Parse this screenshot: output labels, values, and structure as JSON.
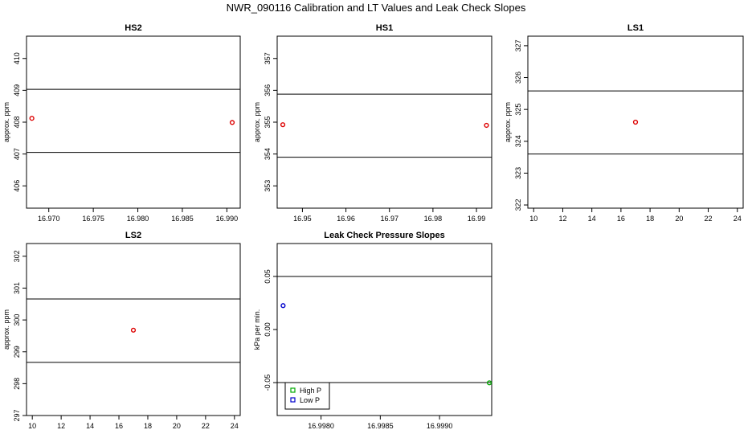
{
  "figure": {
    "title": "NWR_090116  Calibration and LT Values and Leak Check Slopes"
  },
  "chart_data": [
    {
      "type": "scatter",
      "title": "HS2",
      "xlabel": "",
      "ylabel": "approx. ppm",
      "xlim": [
        16.9675,
        16.9915
      ],
      "ylim": [
        405.3,
        410.7
      ],
      "xticks": [
        16.97,
        16.975,
        16.98,
        16.985,
        16.99
      ],
      "xtick_labels": [
        "16.970",
        "16.975",
        "16.980",
        "16.985",
        "16.990"
      ],
      "yticks": [
        406,
        407,
        408,
        409,
        410
      ],
      "ytick_labels": [
        "406",
        "407",
        "408",
        "409",
        "410"
      ],
      "hlines": [
        409.03,
        407.05
      ],
      "series": [
        {
          "marker": "circle",
          "color": "#dd0000",
          "points": [
            {
              "x": 16.9681,
              "y": 408.12
            },
            {
              "x": 16.9906,
              "y": 407.99
            }
          ]
        }
      ]
    },
    {
      "type": "scatter",
      "title": "HS1",
      "xlabel": "",
      "ylabel": "approx. ppm",
      "xlim": [
        16.9442,
        16.9935
      ],
      "ylim": [
        352.3,
        357.7
      ],
      "xticks": [
        16.95,
        16.96,
        16.97,
        16.98,
        16.99
      ],
      "xtick_labels": [
        "16.95",
        "16.96",
        "16.97",
        "16.98",
        "16.99"
      ],
      "yticks": [
        353,
        354,
        355,
        356,
        357
      ],
      "ytick_labels": [
        "353",
        "354",
        "355",
        "356",
        "357"
      ],
      "hlines": [
        355.88,
        353.9
      ],
      "series": [
        {
          "marker": "circle",
          "color": "#dd0000",
          "points": [
            {
              "x": 16.9455,
              "y": 354.92
            },
            {
              "x": 16.9923,
              "y": 354.9
            }
          ]
        }
      ]
    },
    {
      "type": "scatter",
      "title": "LS1",
      "xlabel": "",
      "ylabel": "approx. ppm",
      "xlim": [
        9.6,
        24.4
      ],
      "ylim": [
        321.9,
        327.3
      ],
      "xticks": [
        10,
        12,
        14,
        16,
        18,
        20,
        22,
        24
      ],
      "xtick_labels": [
        "10",
        "12",
        "14",
        "16",
        "18",
        "20",
        "22",
        "24"
      ],
      "yticks": [
        322,
        323,
        324,
        325,
        326,
        327
      ],
      "ytick_labels": [
        "322",
        "323",
        "324",
        "325",
        "326",
        "327"
      ],
      "hlines": [
        325.58,
        323.6
      ],
      "series": [
        {
          "marker": "circle",
          "color": "#dd0000",
          "points": [
            {
              "x": 17,
              "y": 324.6
            }
          ]
        }
      ]
    },
    {
      "type": "scatter",
      "title": "LS2",
      "xlabel": "",
      "ylabel": "approx. ppm",
      "xlim": [
        9.6,
        24.4
      ],
      "ylim": [
        297,
        302.4
      ],
      "xticks": [
        10,
        12,
        14,
        16,
        18,
        20,
        22,
        24
      ],
      "xtick_labels": [
        "10",
        "12",
        "14",
        "16",
        "18",
        "20",
        "22",
        "24"
      ],
      "yticks": [
        297,
        298,
        299,
        300,
        301,
        302
      ],
      "ytick_labels": [
        "297",
        "298",
        "299",
        "300",
        "301",
        "302"
      ],
      "hlines": [
        300.66,
        298.67
      ],
      "series": [
        {
          "marker": "circle",
          "color": "#dd0000",
          "points": [
            {
              "x": 17,
              "y": 299.68
            }
          ]
        }
      ]
    },
    {
      "type": "scatter",
      "title": "Leak Check Pressure Slopes",
      "xlabel": "",
      "ylabel": "kPa per min.",
      "xlim": [
        16.99763,
        16.99944
      ],
      "ylim": [
        -0.081,
        0.081
      ],
      "xticks": [
        16.998,
        16.9985,
        16.999
      ],
      "xtick_labels": [
        "16.9980",
        "16.9985",
        "16.9990"
      ],
      "yticks": [
        -0.05,
        0.0,
        0.05
      ],
      "ytick_labels": [
        "-0.05",
        "0.00",
        "0.05"
      ],
      "hlines": [
        0.05,
        -0.05
      ],
      "legend": {
        "position": "bottom-left",
        "entries": [
          {
            "label": "High P",
            "color": "#00aa00"
          },
          {
            "label": "Low P",
            "color": "#0000cc"
          }
        ]
      },
      "series": [
        {
          "name": "High P",
          "marker": "circle",
          "color": "#00aa00",
          "points": [
            {
              "x": 16.99942,
              "y": -0.0502
            }
          ]
        },
        {
          "name": "Low P",
          "marker": "circle",
          "color": "#0000cc",
          "points": [
            {
              "x": 16.99768,
              "y": 0.0225
            }
          ]
        }
      ]
    }
  ]
}
